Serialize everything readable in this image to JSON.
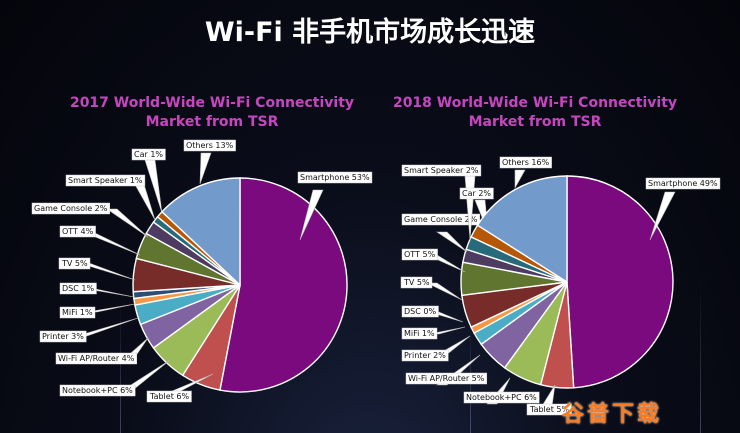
{
  "header": {
    "title": "Wi-Fi 非手机市场成长迅速"
  },
  "watermark": {
    "text": "谷普下载"
  },
  "colors": {
    "smartphone": "#7a0a7e",
    "tablet": "#c0504d",
    "notebook": "#9bbb59",
    "router": "#8064a2",
    "printer": "#4bacc6",
    "mifi": "#f79646",
    "dsc": "#2c4d75",
    "tv": "#772c2a",
    "ott": "#5f7530",
    "console": "#4d3b62",
    "speaker": "#276a7c",
    "car": "#b65708",
    "others": "#729aca"
  },
  "chart_data": [
    {
      "type": "pie",
      "title": "2017 World-Wide Wi-Fi Connectivity Market from TSR",
      "start_angle_deg": 0,
      "direction": "clockwise",
      "slices": [
        {
          "label": "Smartphone 53%",
          "category": "Smartphone",
          "value": 53,
          "color_key": "smartphone"
        },
        {
          "label": "Tablet 6%",
          "category": "Tablet",
          "value": 6,
          "color_key": "tablet"
        },
        {
          "label": "Notebook+PC 6%",
          "category": "Notebook+PC",
          "value": 6,
          "color_key": "notebook"
        },
        {
          "label": "Wi-Fi AP/Router 4%",
          "category": "Wi-Fi AP/Router",
          "value": 4,
          "color_key": "router"
        },
        {
          "label": "Printer 3%",
          "category": "Printer",
          "value": 3,
          "color_key": "printer"
        },
        {
          "label": "MiFi 1%",
          "category": "MiFi",
          "value": 1,
          "color_key": "mifi"
        },
        {
          "label": "DSC 1%",
          "category": "DSC",
          "value": 1,
          "color_key": "dsc"
        },
        {
          "label": "TV 5%",
          "category": "TV",
          "value": 5,
          "color_key": "tv"
        },
        {
          "label": "OTT 4%",
          "category": "OTT",
          "value": 4,
          "color_key": "ott"
        },
        {
          "label": "Game Console 2%",
          "category": "Game Console",
          "value": 2,
          "color_key": "console"
        },
        {
          "label": "Smart Speaker 1%",
          "category": "Smart Speaker",
          "value": 1,
          "color_key": "speaker"
        },
        {
          "label": "Car  1%",
          "category": "Car",
          "value": 1,
          "color_key": "car"
        },
        {
          "label": "Others 13%",
          "category": "Others",
          "value": 13,
          "color_key": "others"
        }
      ]
    },
    {
      "type": "pie",
      "title": "2018 World-Wide Wi-Fi Connectivity Market from TSR",
      "start_angle_deg": 0,
      "direction": "clockwise",
      "slices": [
        {
          "label": "Smartphone 49%",
          "category": "Smartphone",
          "value": 49,
          "color_key": "smartphone"
        },
        {
          "label": "Tablet 5%",
          "category": "Tablet",
          "value": 5,
          "color_key": "tablet"
        },
        {
          "label": "Notebook+PC 6%",
          "category": "Notebook+PC",
          "value": 6,
          "color_key": "notebook"
        },
        {
          "label": "Wi-Fi AP/Router 5%",
          "category": "Wi-Fi AP/Router",
          "value": 5,
          "color_key": "router"
        },
        {
          "label": "Printer 2%",
          "category": "Printer",
          "value": 2,
          "color_key": "printer"
        },
        {
          "label": "MiFi 1%",
          "category": "MiFi",
          "value": 1,
          "color_key": "mifi"
        },
        {
          "label": "DSC 0%",
          "category": "DSC",
          "value": 0,
          "color_key": "dsc"
        },
        {
          "label": "TV 5%",
          "category": "TV",
          "value": 5,
          "color_key": "tv"
        },
        {
          "label": "OTT 5%",
          "category": "OTT",
          "value": 5,
          "color_key": "ott"
        },
        {
          "label": "Game Console 2%",
          "category": "Game Console",
          "value": 2,
          "color_key": "console"
        },
        {
          "label": "Smart Speaker 2%",
          "category": "Smart Speaker",
          "value": 2,
          "color_key": "speaker"
        },
        {
          "label": "Car  2%",
          "category": "Car",
          "value": 2,
          "color_key": "car"
        },
        {
          "label": "Others 16%",
          "category": "Others",
          "value": 16,
          "color_key": "others"
        }
      ]
    }
  ]
}
